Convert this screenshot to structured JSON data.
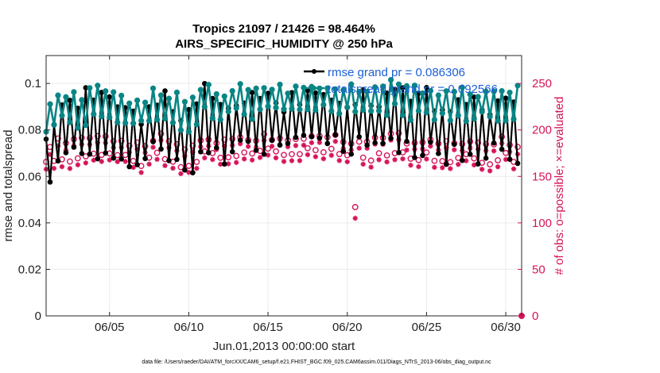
{
  "chart_data": {
    "type": "line",
    "title_line1": "Tropics 21097 / 21426 = 98.464%",
    "title_line2": "AIRS_SPECIFIC_HUMIDITY @ 250 hPa",
    "xlabel": "Jun.01,2013 00:00:00 start",
    "ylabel": "rmse and totalspread",
    "ylabel_right": "# of obs: o=possible; ×=evaluated",
    "xlim": [
      1,
      31
    ],
    "ylim": [
      0,
      0.112
    ],
    "ylim_right": [
      0,
      280
    ],
    "x_ticks": [
      5,
      10,
      15,
      20,
      25,
      30
    ],
    "x_tick_labels": [
      "06/05",
      "06/10",
      "06/15",
      "06/20",
      "06/25",
      "06/30"
    ],
    "y_ticks": [
      0,
      0.02,
      0.04,
      0.06,
      0.08,
      0.1
    ],
    "y_tick_labels": [
      "0",
      "0.02",
      "0.04",
      "0.06",
      "0.08",
      "0.1"
    ],
    "y_right_ticks": [
      0,
      50,
      100,
      150,
      200,
      250
    ],
    "y_right_tick_labels": [
      "0",
      "50",
      "100",
      "150",
      "200",
      "250"
    ],
    "legend": [
      {
        "label": "rmse grand pr = 0.086306",
        "color": "#000000"
      },
      {
        "label": "totalspread grand pr = 0.092566",
        "color": "#008080"
      }
    ],
    "colors": {
      "rmse": "#000000",
      "spread": "#0a8585",
      "obs": "#d6145a",
      "grid": "#ebebeb"
    },
    "rmse_base": [
      0.07,
      0.081,
      0.08,
      0.085,
      0.079,
      0.076,
      0.075,
      0.083,
      0.079,
      0.073,
      0.088,
      0.078,
      0.083,
      0.082,
      0.085,
      0.08,
      0.084,
      0.086,
      0.085,
      0.082,
      0.084,
      0.083,
      0.087,
      0.081,
      0.083,
      0.08,
      0.082,
      0.081,
      0.08,
      0.083,
      0.081
    ],
    "spread_base": [
      0.085,
      0.09,
      0.088,
      0.092,
      0.09,
      0.088,
      0.087,
      0.091,
      0.089,
      0.086,
      0.094,
      0.09,
      0.093,
      0.092,
      0.094,
      0.092,
      0.093,
      0.094,
      0.094,
      0.093,
      0.093,
      0.093,
      0.095,
      0.091,
      0.093,
      0.091,
      0.092,
      0.091,
      0.091,
      0.092,
      0.091
    ],
    "obs_possible_base": [
      172,
      180,
      178,
      182,
      183,
      178,
      172,
      185,
      177,
      168,
      186,
      176,
      184,
      181,
      185,
      180,
      183,
      188,
      185,
      180,
      178,
      181,
      186,
      178,
      182,
      176,
      180,
      178,
      176,
      181,
      172
    ],
    "obs_evaluated_base": [
      168,
      176,
      175,
      179,
      180,
      175,
      169,
      182,
      174,
      165,
      183,
      173,
      181,
      178,
      182,
      177,
      180,
      185,
      182,
      177,
      175,
      178,
      183,
      175,
      179,
      173,
      177,
      175,
      173,
      178,
      168
    ],
    "obs_dip": {
      "day": 20.5,
      "possible": 117,
      "evaluated": 105
    },
    "obs_last": {
      "day": 31,
      "possible": 0,
      "evaluated": 0
    }
  },
  "footer": "data file: /Users/raeder/DAI/ATM_forcXX/CAM6_setup/f.e21.FHIST_BGC.f09_025.CAM6assim.011/Diags_NTrS_2013-06/obs_diag_output.nc"
}
